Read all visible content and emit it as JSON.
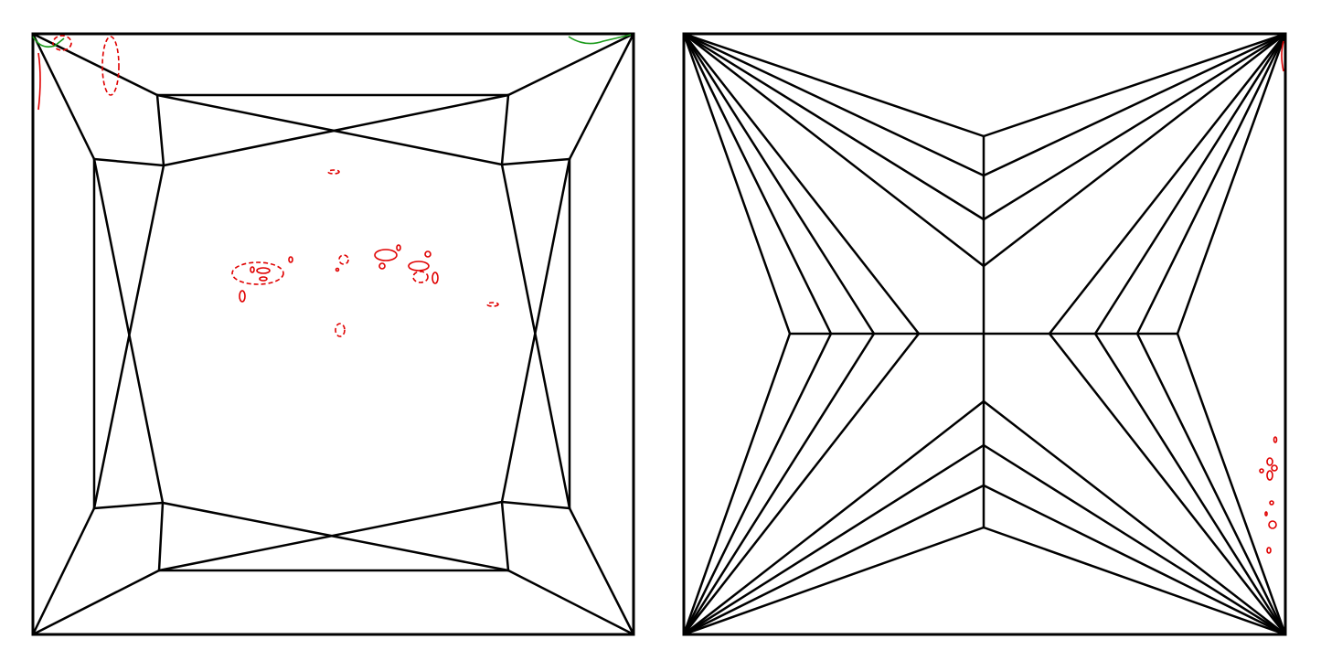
{
  "diagrams": [
    {
      "name": "left-facet-diagram",
      "style": "cut with inner rectangular table and crossing facets"
    },
    {
      "name": "right-facet-diagram",
      "style": "corner fan facets meeting a central cross"
    }
  ],
  "colors": {
    "facet_lines": "#000000",
    "annotation_marks": "#e00000",
    "annotation_green": "#1a9a1a",
    "background": "#ffffff"
  }
}
